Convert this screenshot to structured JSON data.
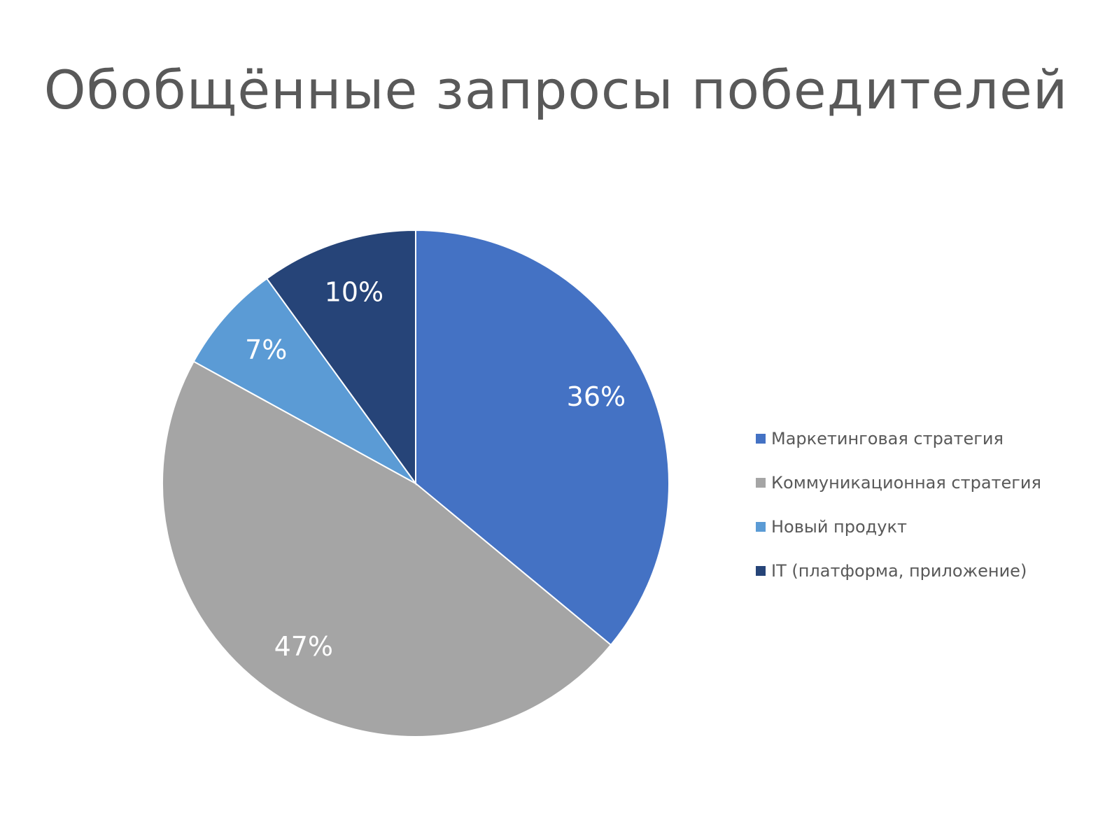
{
  "slide": {
    "title": "Обобщённые запросы победителей"
  },
  "chart_data": {
    "type": "pie",
    "title": "Обобщённые запросы победителей",
    "categories": [
      "Маркетинговая стратегия",
      "Коммуникационная стратегия",
      "Новый продукт",
      "IT (платформа, приложение)"
    ],
    "values": [
      36,
      47,
      7,
      10
    ],
    "value_labels": [
      "36%",
      "47%",
      "7%",
      "10%"
    ],
    "colors": [
      "#4472C4",
      "#A5A5A5",
      "#5B9BD5",
      "#264478"
    ],
    "start_angle_deg": 0,
    "direction": "clockwise",
    "legend_position": "right"
  }
}
